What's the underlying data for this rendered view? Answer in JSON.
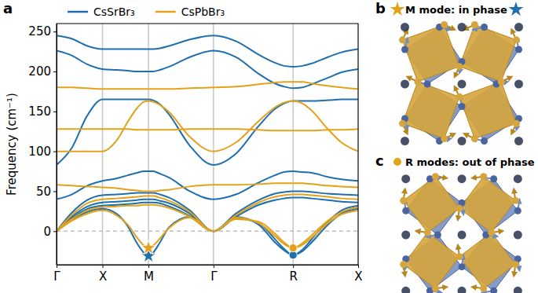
{
  "chart_data": {
    "type": "line",
    "label": "a",
    "ylabel": "Frequency (cm⁻¹)",
    "x": [
      0,
      0.33,
      0.67,
      1,
      1.3,
      1.55,
      1.75,
      1.9,
      2,
      2.1,
      2.25,
      2.45,
      2.9,
      3.414,
      3.9,
      4.4,
      4.75,
      4.95,
      5.146,
      5.35,
      5.55,
      5.9,
      6.2,
      6.561
    ],
    "xlim": [
      0,
      6.561
    ],
    "xticks": [
      {
        "value": 0,
        "label": "Γ"
      },
      {
        "value": 1,
        "label": "X"
      },
      {
        "value": 2,
        "label": "M"
      },
      {
        "value": 3.414,
        "label": "Γ"
      },
      {
        "value": 5.146,
        "label": "R"
      },
      {
        "value": 6.561,
        "label": "X"
      }
    ],
    "ylim": [
      -42,
      260
    ],
    "yticks": [
      0,
      50,
      100,
      150,
      200,
      250
    ],
    "grid": "x",
    "legend": "top",
    "reference_lines": [
      {
        "y": 0,
        "line_style": "dashed"
      }
    ],
    "series": [
      {
        "name": "CsSrBr₃",
        "color": "#1f6fae",
        "values": [
          [
            245,
            241,
            232,
            228,
            228,
            228,
            228,
            228,
            228,
            228,
            229,
            232,
            240,
            245,
            238,
            221,
            211,
            207,
            206,
            207,
            210,
            218,
            224,
            228
          ],
          [
            226,
            220,
            209,
            203,
            202,
            201,
            200,
            200,
            200,
            200,
            202,
            206,
            218,
            226,
            218,
            197,
            185,
            181,
            179,
            180,
            184,
            192,
            199,
            203
          ],
          [
            83,
            104,
            145,
            165,
            165,
            165,
            165,
            165,
            165,
            164,
            159,
            146,
            107,
            83,
            97,
            132,
            153,
            160,
            163,
            163,
            163,
            164,
            165,
            165
          ],
          [
            40,
            46,
            57,
            63,
            66,
            70,
            73,
            75,
            75,
            75,
            72,
            67,
            50,
            40,
            46,
            61,
            70,
            74,
            75,
            74,
            73,
            68,
            65,
            63
          ],
          [
            0,
            23,
            39,
            45,
            46,
            47,
            48,
            48,
            48,
            48,
            46,
            42,
            26,
            0,
            22,
            39,
            47,
            49,
            50,
            50,
            49,
            47,
            46,
            45
          ],
          [
            0,
            18,
            31,
            36,
            37,
            38,
            39,
            40,
            40,
            40,
            38,
            35,
            22,
            0,
            18,
            33,
            39,
            41,
            42,
            42,
            41,
            39,
            37,
            36
          ],
          [
            0,
            14,
            24,
            28,
            22,
            6,
            -15,
            -27,
            -31,
            -27,
            -14,
            5,
            18,
            0,
            18,
            8,
            -14,
            -24,
            -30,
            -25,
            -14,
            8,
            22,
            28
          ],
          [
            0,
            16,
            28,
            32,
            33,
            34,
            35,
            36,
            36,
            36,
            35,
            31,
            19,
            0,
            16,
            10,
            -10,
            -22,
            -30,
            -23,
            -10,
            12,
            26,
            32
          ]
        ],
        "soft_modes": [
          {
            "x": 2,
            "y": -31,
            "marker": "star"
          },
          {
            "x": 5.146,
            "y": -30,
            "marker": "circle"
          }
        ]
      },
      {
        "name": "CsPbBr₃",
        "color": "#e3a21a",
        "values": [
          [
            180,
            180,
            179,
            178,
            178,
            178,
            178,
            178,
            178,
            178,
            178,
            178,
            179,
            180,
            181,
            184,
            186,
            187,
            187,
            187,
            185,
            182,
            180,
            178
          ],
          [
            128,
            128,
            128,
            128,
            128,
            128,
            127,
            127,
            127,
            127,
            127,
            127,
            128,
            128,
            128,
            127,
            126,
            126,
            126,
            126,
            126,
            127,
            127,
            128
          ],
          [
            100,
            100,
            100,
            100,
            113,
            137,
            154,
            162,
            163,
            162,
            158,
            149,
            118,
            100,
            111,
            138,
            155,
            161,
            163,
            160,
            151,
            128,
            111,
            100
          ],
          [
            58,
            57,
            56,
            55,
            54,
            52,
            51,
            50,
            50,
            50,
            51,
            52,
            56,
            58,
            58,
            59,
            60,
            60,
            60,
            60,
            59,
            57,
            56,
            55
          ],
          [
            0,
            20,
            35,
            40,
            41,
            42,
            43,
            44,
            44,
            44,
            42,
            38,
            24,
            0,
            20,
            36,
            43,
            45,
            46,
            46,
            45,
            43,
            41,
            40
          ],
          [
            0,
            13,
            22,
            26,
            20,
            8,
            -8,
            -18,
            -21,
            -18,
            -9,
            4,
            17,
            0,
            17,
            10,
            -6,
            -16,
            -21,
            -17,
            -8,
            10,
            21,
            26
          ],
          [
            0,
            15,
            26,
            30,
            31,
            32,
            32,
            33,
            33,
            33,
            32,
            29,
            18,
            0,
            15,
            12,
            -3,
            -14,
            -21,
            -15,
            -5,
            13,
            24,
            30
          ]
        ],
        "soft_modes": [
          {
            "x": 2,
            "y": -21,
            "marker": "star"
          },
          {
            "x": 5.146,
            "y": -21,
            "marker": "circle"
          }
        ]
      }
    ]
  },
  "diagrams": [
    {
      "label": "b",
      "title": "M mode: in phase",
      "marker": "star"
    },
    {
      "label": "c",
      "title": "R modes: out of phase",
      "marker": "circle"
    }
  ]
}
